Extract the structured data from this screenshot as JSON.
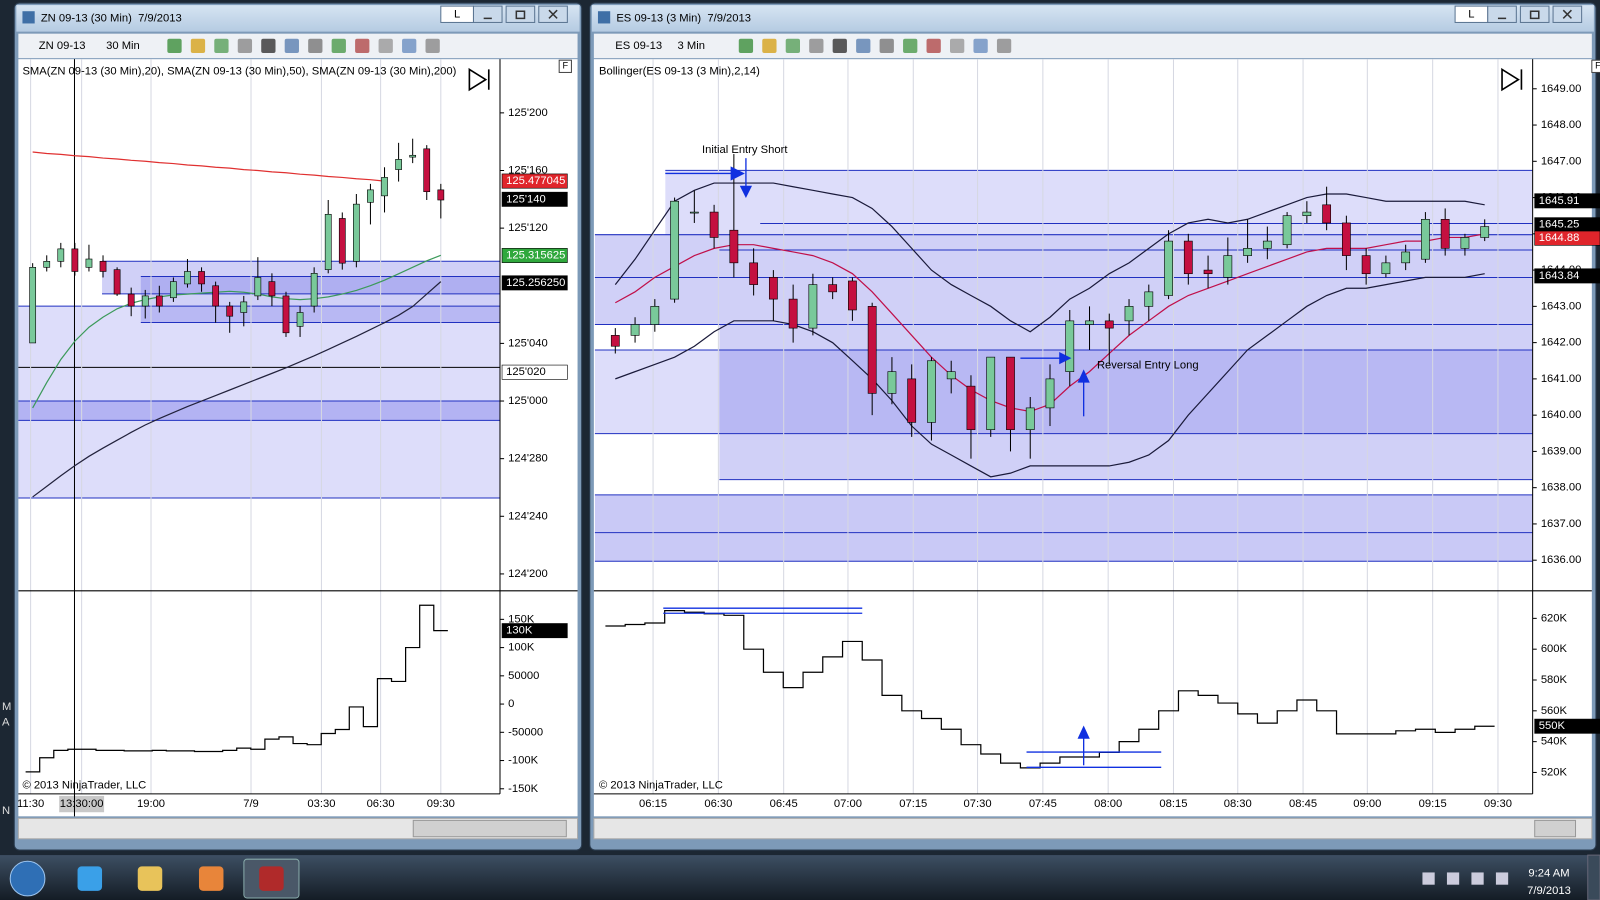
{
  "windows": [
    {
      "title": "ZN 09-13 (30 Min)  7/9/2013",
      "window_button": "L",
      "panel_button": "F",
      "instrument": "ZN 09-13",
      "interval": "30 Min",
      "indicator_label": "SMA(ZN 09-13 (30 Min),20), SMA(ZN 09-13 (30 Min),50), SMA(ZN 09-13 (30 Min),200)",
      "copyright": "© 2013 NinjaTrader, LLC",
      "x_labels": [
        "11:30",
        "13:30:00",
        "19:00",
        "7/9",
        "03:30",
        "06:30",
        "09:30"
      ],
      "price_panel": {
        "type": "candlestick",
        "up_color": "#79c99a",
        "down_color": "#c41040",
        "ylim": [
          124.595,
          125.737
        ],
        "yticks": [
          {
            "value": 125.625,
            "label": "125'200"
          },
          {
            "value": 125.5,
            "label": "125'160"
          },
          {
            "value": 125.375,
            "label": "125'120"
          },
          {
            "value": 125.125,
            "label": "125'040"
          },
          {
            "value": 125,
            "label": "125'000"
          },
          {
            "value": 124.875,
            "label": "124'280"
          },
          {
            "value": 124.75,
            "label": "124'240"
          },
          {
            "value": 124.625,
            "label": "124'200"
          }
        ],
        "open": [
          125.126,
          125.29,
          125.303,
          125.33,
          125.29,
          125.303,
          125.285,
          125.232,
          125.206,
          125.228,
          125.224,
          125.254,
          125.281,
          125.25,
          125.206,
          125.192,
          125.228,
          125.259,
          125.228,
          125.162,
          125.206,
          125.285,
          125.396,
          125.303,
          125.431,
          125.445,
          125.502,
          125.529,
          125.547,
          125.458
        ],
        "high": [
          125.299,
          125.316,
          125.343,
          125.343,
          125.339,
          125.316,
          125.29,
          125.246,
          125.241,
          125.25,
          125.268,
          125.308,
          125.29,
          125.259,
          125.215,
          125.228,
          125.312,
          125.277,
          125.237,
          125.206,
          125.29,
          125.436,
          125.409,
          125.449,
          125.471,
          125.507,
          125.56,
          125.569,
          125.555,
          125.471
        ],
        "low": [
          125.126,
          125.281,
          125.29,
          125.272,
          125.281,
          125.268,
          125.228,
          125.184,
          125.179,
          125.192,
          125.215,
          125.246,
          125.237,
          125.17,
          125.148,
          125.162,
          125.219,
          125.206,
          125.139,
          125.139,
          125.192,
          125.277,
          125.285,
          125.29,
          125.383,
          125.409,
          125.476,
          125.516,
          125.436,
          125.396
        ],
        "close": [
          125.29,
          125.303,
          125.33,
          125.281,
          125.308,
          125.281,
          125.232,
          125.206,
          125.228,
          125.206,
          125.259,
          125.281,
          125.254,
          125.206,
          125.184,
          125.215,
          125.268,
          125.228,
          125.148,
          125.192,
          125.277,
          125.405,
          125.299,
          125.427,
          125.458,
          125.485,
          125.524,
          125.533,
          125.454,
          125.436
        ],
        "lines": [
          {
            "color": "#e03030",
            "values": [
              125.54,
              125.537,
              125.535,
              125.532,
              125.53,
              125.527,
              125.525,
              125.522,
              125.52,
              125.517,
              125.515,
              125.512,
              125.51,
              125.507,
              125.505,
              125.502,
              125.5,
              125.497,
              125.495,
              125.492,
              125.49,
              125.487,
              125.485,
              125.482,
              125.48,
              125.477,
              null,
              null,
              null,
              null
            ]
          },
          {
            "color": "#22223c",
            "values": [
              124.792,
              124.815,
              124.838,
              124.86,
              124.88,
              124.898,
              124.915,
              124.932,
              124.948,
              124.962,
              124.975,
              124.988,
              125.0,
              125.012,
              125.024,
              125.036,
              125.048,
              125.06,
              125.072,
              125.085,
              125.098,
              125.112,
              125.126,
              125.14,
              125.155,
              125.17,
              125.186,
              125.205,
              125.232,
              125.259
            ]
          },
          {
            "color": "#3c9a5a",
            "values": [
              124.985,
              125.04,
              125.09,
              125.13,
              125.16,
              125.182,
              125.2,
              125.212,
              125.22,
              125.226,
              125.23,
              125.232,
              125.234,
              125.236,
              125.238,
              125.236,
              125.232,
              125.226,
              125.222,
              125.22,
              125.222,
              125.226,
              125.232,
              125.24,
              125.25,
              125.262,
              125.276,
              125.29,
              125.304,
              125.316
            ]
          }
        ],
        "markers": [
          {
            "value": 125.477045,
            "color": "#e0252b"
          },
          {
            "value": 125.4375,
            "label": "125'140",
            "color": "#000000"
          },
          {
            "value": 125.315625,
            "color": "#2fa83c"
          },
          {
            "value": 125.25625,
            "label": "125.256250",
            "color": "#000000"
          },
          {
            "value": 125.0625,
            "label": "125'020",
            "color": "#ffffff"
          }
        ]
      },
      "lower_panel": {
        "type": "step",
        "color": "#000000",
        "ylim": [
          -153600,
          193300
        ],
        "yticks": [
          {
            "value": 150000,
            "label": "150K"
          },
          {
            "value": 100000,
            "label": "100K"
          },
          50000,
          0,
          -50000,
          {
            "value": -100000,
            "label": "-100K"
          },
          {
            "value": -150000,
            "label": "-150K"
          }
        ],
        "values": [
          -120000,
          -95000,
          -82000,
          -80000,
          -80000,
          -82000,
          -82000,
          -83000,
          -83000,
          -82000,
          -83000,
          -83000,
          -84000,
          -84000,
          -82000,
          -78000,
          -80000,
          -62000,
          -58000,
          -70000,
          -72000,
          -52000,
          -45000,
          -5000,
          -40000,
          45000,
          40000,
          100000,
          175000,
          130000
        ],
        "markers": [
          {
            "value": 130000,
            "label": "130K",
            "color": "#000000"
          }
        ]
      }
    },
    {
      "title": "ES 09-13 (3 Min)  7/9/2013",
      "window_button": "L",
      "panel_button": "F",
      "instrument": "ES 09-13",
      "interval": "3 Min",
      "indicator_label": "Bollinger(ES 09-13 (3 Min),2,14)",
      "copyright": "© 2013 NinjaTrader, LLC",
      "annotations": [
        "Initial Entry Short",
        "Reversal Entry Long"
      ],
      "x_labels": [
        "06:15",
        "06:30",
        "06:45",
        "07:00",
        "07:15",
        "07:30",
        "07:45",
        "08:00",
        "08:15",
        "08:30",
        "08:45",
        "09:00",
        "09:15",
        "09:30"
      ],
      "price_panel": {
        "type": "candlestick",
        "up_color": "#79c99a",
        "down_color": "#c41040",
        "ylim": [
          1635.24,
          1649.76
        ],
        "yticks": [
          {
            "value": 1649,
            "label": "1649.00"
          },
          {
            "value": 1648,
            "label": "1648.00"
          },
          {
            "value": 1647,
            "label": "1647.00"
          },
          {
            "value": 1646,
            "label": "1646.00"
          },
          {
            "value": 1645,
            "label": "1645.00"
          },
          {
            "value": 1644,
            "label": "1644.00"
          },
          {
            "value": 1643,
            "label": "1643.00"
          },
          {
            "value": 1642,
            "label": "1642.00"
          },
          {
            "value": 1641,
            "label": "1641.00"
          },
          {
            "value": 1640,
            "label": "1640.00"
          },
          {
            "value": 1639,
            "label": "1639.00"
          },
          {
            "value": 1638,
            "label": "1638.00"
          },
          {
            "value": 1637,
            "label": "1637.00"
          },
          {
            "value": 1636,
            "label": "1636.00"
          }
        ],
        "open": [
          1642.2,
          1642.2,
          1642.5,
          1643.2,
          1645.6,
          1645.6,
          1645.1,
          1644.2,
          1643.8,
          1643.2,
          1642.4,
          1643.6,
          1643.7,
          1643.0,
          1640.6,
          1641.0,
          1639.8,
          1641.0,
          1640.8,
          1639.6,
          1641.6,
          1639.6,
          1640.2,
          1641.2,
          1642.5,
          1642.6,
          1642.6,
          1643.0,
          1643.3,
          1644.8,
          1644.0,
          1643.8,
          1644.4,
          1644.6,
          1644.7,
          1645.5,
          1645.8,
          1645.3,
          1644.4,
          1643.9,
          1644.2,
          1644.3,
          1645.4,
          1644.6,
          1644.9
        ],
        "high": [
          1642.4,
          1642.7,
          1643.2,
          1646.0,
          1646.2,
          1645.8,
          1647.2,
          1644.6,
          1644.0,
          1643.6,
          1643.9,
          1643.8,
          1643.8,
          1643.1,
          1641.6,
          1641.4,
          1641.6,
          1641.5,
          1641.1,
          1641.6,
          1641.6,
          1640.5,
          1641.4,
          1642.9,
          1643.0,
          1642.8,
          1643.2,
          1643.6,
          1645.1,
          1645.0,
          1644.4,
          1644.9,
          1645.4,
          1645.2,
          1645.6,
          1645.9,
          1646.3,
          1645.5,
          1644.6,
          1644.4,
          1644.7,
          1645.6,
          1645.7,
          1645.0,
          1645.4
        ],
        "low": [
          1641.7,
          1642.0,
          1642.3,
          1643.1,
          1645.3,
          1644.6,
          1643.8,
          1643.3,
          1642.6,
          1642.0,
          1642.2,
          1643.2,
          1642.6,
          1640.0,
          1640.3,
          1639.4,
          1639.3,
          1640.6,
          1638.8,
          1639.4,
          1639.0,
          1638.8,
          1639.7,
          1640.8,
          1641.8,
          1641.4,
          1642.2,
          1642.6,
          1643.2,
          1643.6,
          1643.5,
          1643.6,
          1644.2,
          1644.3,
          1644.6,
          1645.3,
          1645.1,
          1644.0,
          1643.6,
          1643.8,
          1644.0,
          1644.2,
          1644.4,
          1644.4,
          1644.8
        ],
        "close": [
          1641.9,
          1642.5,
          1643.0,
          1645.9,
          1645.6,
          1644.9,
          1644.2,
          1643.6,
          1643.2,
          1642.4,
          1643.6,
          1643.4,
          1642.9,
          1640.6,
          1641.2,
          1639.8,
          1641.5,
          1641.2,
          1639.6,
          1641.6,
          1639.6,
          1640.2,
          1641.0,
          1642.6,
          1642.6,
          1642.4,
          1643.0,
          1643.4,
          1644.8,
          1643.9,
          1643.9,
          1644.4,
          1644.6,
          1644.8,
          1645.5,
          1645.6,
          1645.3,
          1644.4,
          1643.9,
          1644.2,
          1644.5,
          1645.4,
          1644.6,
          1644.9,
          1645.2
        ],
        "lines": [
          {
            "color": "#1a1a3a",
            "values": [
              1643.6,
              1644.3,
              1645.1,
              1645.9,
              1646.2,
              1646.4,
              1646.4,
              1646.4,
              1646.4,
              1646.3,
              1646.2,
              1646.1,
              1646.0,
              1645.7,
              1645.2,
              1644.6,
              1644.0,
              1643.6,
              1643.3,
              1643.0,
              1642.6,
              1642.3,
              1642.7,
              1643.2,
              1643.5,
              1643.9,
              1644.2,
              1644.6,
              1645.0,
              1645.3,
              1645.4,
              1645.3,
              1645.4,
              1645.6,
              1645.8,
              1646.0,
              1646.1,
              1646.1,
              1646.0,
              1645.9,
              1645.9,
              1645.9,
              1645.9,
              1645.9,
              1645.8
            ]
          },
          {
            "color": "#c0104a",
            "values": [
              1643.1,
              1643.4,
              1643.8,
              1644.1,
              1644.4,
              1644.6,
              1644.7,
              1644.7,
              1644.6,
              1644.5,
              1644.4,
              1644.2,
              1643.9,
              1643.4,
              1642.8,
              1642.2,
              1641.6,
              1641.1,
              1640.7,
              1640.4,
              1640.2,
              1640.1,
              1640.3,
              1640.8,
              1641.2,
              1641.7,
              1642.2,
              1642.6,
              1643.0,
              1643.3,
              1643.5,
              1643.7,
              1643.9,
              1644.1,
              1644.3,
              1644.5,
              1644.6,
              1644.6,
              1644.6,
              1644.7,
              1644.8,
              1644.8,
              1644.9,
              1644.9,
              1645.0
            ]
          },
          {
            "color": "#1a1a3a",
            "values": [
              1641.0,
              1641.2,
              1641.4,
              1641.6,
              1641.9,
              1642.3,
              1642.6,
              1642.6,
              1642.6,
              1642.5,
              1642.3,
              1642.0,
              1641.5,
              1641.0,
              1640.4,
              1639.7,
              1639.2,
              1638.9,
              1638.6,
              1638.3,
              1638.4,
              1638.6,
              1638.6,
              1638.6,
              1638.6,
              1638.6,
              1638.7,
              1638.9,
              1639.3,
              1640.0,
              1640.6,
              1641.2,
              1641.8,
              1642.2,
              1642.6,
              1643.0,
              1643.3,
              1643.5,
              1643.5,
              1643.6,
              1643.7,
              1643.8,
              1643.8,
              1643.8,
              1643.9
            ]
          }
        ],
        "markers": [
          {
            "value": 1645.91,
            "color": "#000000"
          },
          {
            "value": 1645.25,
            "color": "#000000"
          },
          {
            "value": 1644.88,
            "color": "#e0252b"
          },
          {
            "value": 1643.84,
            "color": "#000000"
          }
        ]
      },
      "lower_panel": {
        "type": "step",
        "color": "#000000",
        "ylim": [
          508080,
          635230
        ],
        "yticks": [
          {
            "value": 620000,
            "label": "620K"
          },
          {
            "value": 600000,
            "label": "600K"
          },
          {
            "value": 580000,
            "label": "580K"
          },
          {
            "value": 560000,
            "label": "560K"
          },
          {
            "value": 540000,
            "label": "540K"
          },
          {
            "value": 520000,
            "label": "520K"
          }
        ],
        "values": [
          615000,
          616000,
          617000,
          625000,
          624000,
          623000,
          622000,
          600000,
          585000,
          575000,
          585000,
          595000,
          605000,
          593000,
          570000,
          560000,
          555000,
          548000,
          538000,
          532000,
          526000,
          523000,
          526000,
          530000,
          530000,
          533000,
          540000,
          548000,
          560000,
          573000,
          570000,
          565000,
          558000,
          552000,
          560000,
          567000,
          560000,
          545000,
          545000,
          545000,
          547000,
          548000,
          546000,
          548000,
          550000
        ],
        "markers": [
          {
            "value": 550000,
            "label": "550K",
            "color": "#000000"
          }
        ]
      }
    }
  ],
  "desktop_edge": [
    "M",
    "A",
    "N"
  ],
  "taskbar": {
    "time": "9:24 AM",
    "date": "7/9/2013"
  }
}
